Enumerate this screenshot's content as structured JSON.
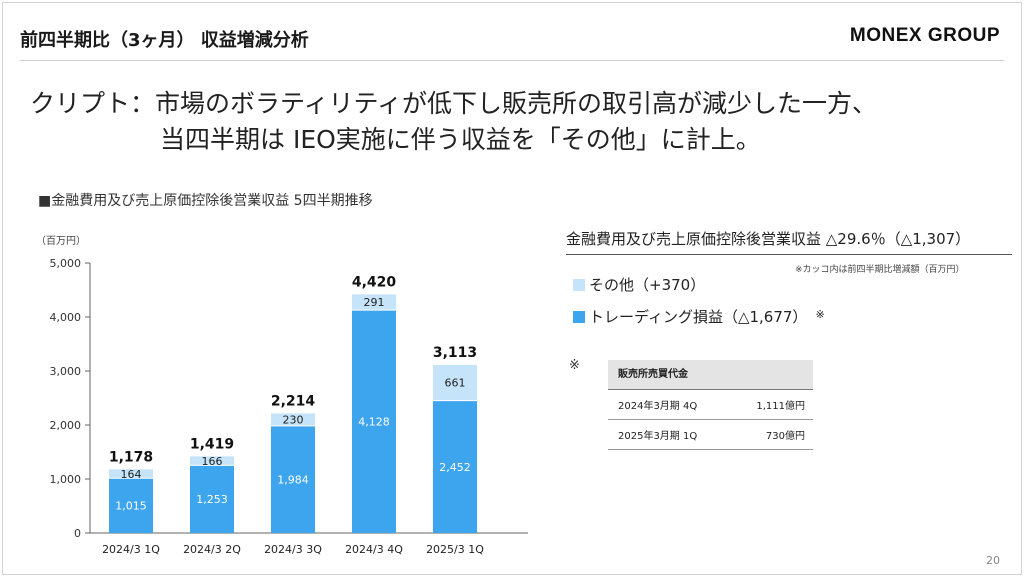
{
  "header": {
    "title": "前四半期比（3ヶ月） 収益増減分析",
    "logo": "MONEX GROUP"
  },
  "headline": {
    "line1": "クリプト：市場のボラティリティが低下し販売所の取引高が減少した一方、",
    "line2": "当四半期は IEO実施に伴う収益を「その他」に計上。"
  },
  "chart_data": {
    "type": "bar",
    "stacked": true,
    "title": "■金融費用及び売上原価控除後営業収益 5四半期推移",
    "unit_label": "（百万円）",
    "categories": [
      "2024/3 1Q",
      "2024/3 2Q",
      "2024/3 3Q",
      "2024/3 4Q",
      "2025/3 1Q"
    ],
    "series": [
      {
        "name": "トレーディング損益",
        "values": [
          1015,
          1253,
          1984,
          4128,
          2452
        ],
        "color": "#3da5ee"
      },
      {
        "name": "その他",
        "values": [
          164,
          166,
          230,
          291,
          661
        ],
        "color": "#c5e4f9"
      }
    ],
    "totals": [
      1178,
      1419,
      2214,
      4420,
      3113
    ],
    "value_labels": {
      "bottom": [
        "1,015",
        "1,253",
        "1,984",
        "4,128",
        "2,452"
      ],
      "top": [
        "164",
        "166",
        "230",
        "291",
        "661"
      ],
      "totals": [
        "1,178",
        "1,419",
        "2,214",
        "4,420",
        "3,113"
      ]
    },
    "yticks": [
      0,
      1000,
      2000,
      3000,
      4000,
      5000
    ],
    "ytick_labels": [
      "0",
      "1,000",
      "2,000",
      "3,000",
      "4,000",
      "5,000"
    ],
    "ylim": [
      0,
      5000
    ],
    "grid": false
  },
  "right_panel": {
    "title": "金融費用及び売上原価控除後営業収益 △29.6％（△1,307）",
    "note": "※カッコ内は前四半期比増減額（百万円）",
    "legend": [
      {
        "label": "その他（+370）",
        "color": "#c5e4f9"
      },
      {
        "label": "トレーディング損益（△1,677）",
        "color": "#3da5ee",
        "mark": "※"
      }
    ]
  },
  "footnote": {
    "mark": "※",
    "table": {
      "header": "販売所売買代金",
      "rows": [
        {
          "period": "2024年3月期 4Q",
          "value": "1,111億円"
        },
        {
          "period": "2025年3月期 1Q",
          "value": "730億円"
        }
      ]
    }
  },
  "page_number": "20"
}
